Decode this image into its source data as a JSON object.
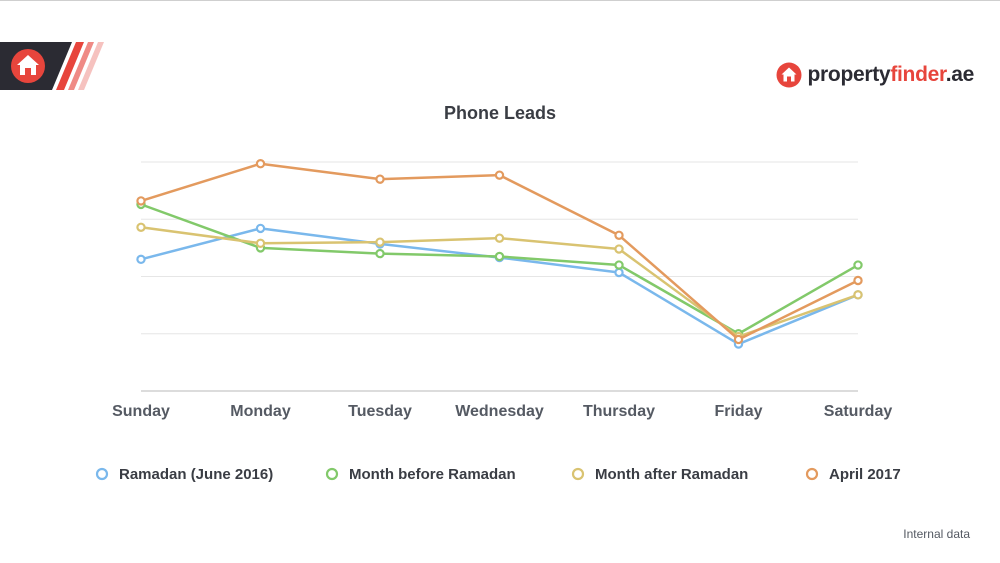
{
  "brand": {
    "name_part1": "property",
    "name_part2": "finder",
    "name_part3": ".ae",
    "icon": "house-icon"
  },
  "footnote": "Internal data",
  "colors": {
    "brand_red": "#e7453c",
    "brand_dark": "#2b2b33",
    "grid": "#e6e6e6",
    "text": "#3a3d44"
  },
  "chart_data": {
    "type": "line",
    "title": "Phone Leads",
    "categories": [
      "Sunday",
      "Monday",
      "Tuesday",
      "Wednesday",
      "Thursday",
      "Friday",
      "Saturday"
    ],
    "ylim": [
      0,
      4
    ],
    "grid": true,
    "legend_position": "bottom",
    "series": [
      {
        "name": "Ramadan (June 2016)",
        "color": "#7ab8ec",
        "values": [
          2.3,
          2.84,
          2.57,
          2.33,
          2.07,
          0.82,
          1.68
        ]
      },
      {
        "name": "Month before Ramadan",
        "color": "#82c96a",
        "values": [
          3.26,
          2.5,
          2.4,
          2.35,
          2.2,
          1.0,
          2.2
        ]
      },
      {
        "name": "Month after Ramadan",
        "color": "#d9c371",
        "values": [
          2.86,
          2.58,
          2.6,
          2.67,
          2.48,
          0.95,
          1.68
        ]
      },
      {
        "name": "April 2017",
        "color": "#e39a5e",
        "values": [
          3.32,
          3.97,
          3.7,
          3.77,
          2.72,
          0.9,
          1.93
        ]
      }
    ]
  }
}
